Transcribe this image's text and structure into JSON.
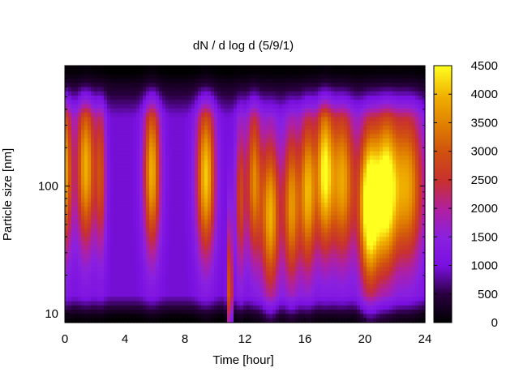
{
  "chart_data": {
    "type": "heatmap",
    "title": "dN / d log d (5/9/1)",
    "xlabel": "Time [hour]",
    "ylabel": "Particle size [nm]",
    "x_ticks": [
      0,
      4,
      8,
      12,
      16,
      20,
      24
    ],
    "x_tick_labels": [
      "0",
      "4",
      "8",
      "12",
      "16",
      "20",
      "24"
    ],
    "xlim": [
      0,
      24
    ],
    "y_scale": "log",
    "y_ticks": [
      10,
      100
    ],
    "y_tick_labels": [
      "10",
      "100"
    ],
    "ylim": [
      8.5,
      880
    ],
    "colorbar": {
      "range": [
        0,
        4500
      ],
      "ticks": [
        0,
        500,
        1000,
        1500,
        2000,
        2500,
        3000,
        3500,
        4000,
        4500
      ],
      "tick_labels": [
        "0",
        "500",
        "1000",
        "1500",
        "2000",
        "2500",
        "3000",
        "3500",
        "4000",
        "4500"
      ],
      "colormap": "black-purple-blue-red-orange-yellow"
    },
    "modes": [
      {
        "time": 0.0,
        "width": 0.35,
        "peak_nm": 130,
        "amp": 2900
      },
      {
        "time": 1.4,
        "width": 0.45,
        "peak_nm": 140,
        "amp": 3000
      },
      {
        "time": 2.4,
        "width": 0.25,
        "peak_nm": 120,
        "amp": 1800
      },
      {
        "time": 5.8,
        "width": 0.4,
        "peak_nm": 130,
        "amp": 3000
      },
      {
        "time": 9.4,
        "width": 0.45,
        "peak_nm": 120,
        "amp": 3200
      },
      {
        "time": 11.0,
        "width": 0.12,
        "peak_nm": 13,
        "amp": 2600
      },
      {
        "time": 11.7,
        "width": 0.25,
        "peak_nm": 80,
        "amp": 1800
      },
      {
        "time": 12.6,
        "width": 0.35,
        "peak_nm": 110,
        "amp": 2500
      },
      {
        "time": 13.7,
        "width": 0.45,
        "peak_nm": 60,
        "amp": 3000
      },
      {
        "time": 15.1,
        "width": 0.4,
        "peak_nm": 70,
        "amp": 2700
      },
      {
        "time": 16.2,
        "width": 0.4,
        "peak_nm": 90,
        "amp": 3000
      },
      {
        "time": 17.3,
        "width": 0.4,
        "peak_nm": 130,
        "amp": 3200
      },
      {
        "time": 18.5,
        "width": 0.6,
        "peak_nm": 110,
        "amp": 2900
      },
      {
        "time": 20.3,
        "width": 0.5,
        "peak_nm": 70,
        "amp": 4200
      },
      {
        "time": 21.4,
        "width": 0.5,
        "peak_nm": 90,
        "amp": 3300
      },
      {
        "time": 22.8,
        "width": 0.8,
        "peak_nm": 100,
        "amp": 2900
      }
    ]
  }
}
